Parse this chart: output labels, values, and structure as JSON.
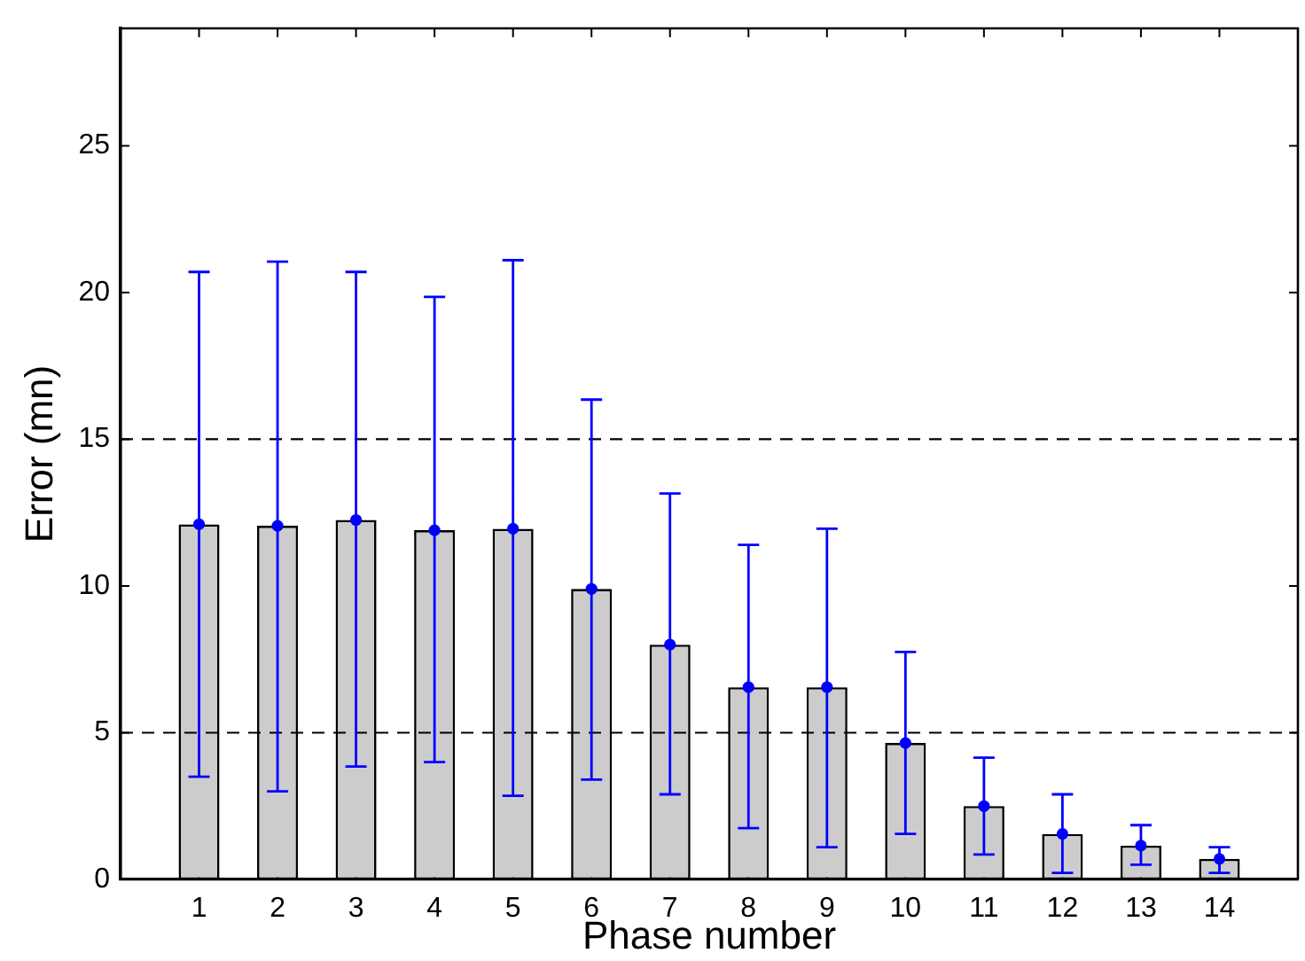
{
  "chart_data": {
    "type": "bar",
    "xlabel": "Phase number",
    "ylabel": "Error (mn)",
    "x": [
      1,
      2,
      3,
      4,
      5,
      6,
      7,
      8,
      9,
      10,
      11,
      12,
      13,
      14
    ],
    "xlim": [
      0,
      15
    ],
    "xticks": [
      1,
      2,
      3,
      4,
      5,
      6,
      7,
      8,
      9,
      10,
      11,
      12,
      13,
      14
    ],
    "ylim": [
      0,
      29
    ],
    "yticks": [
      0,
      5,
      10,
      15,
      20,
      25
    ],
    "series": [
      {
        "color": "#cccccc",
        "values": [
          12.1,
          12.05,
          12.25,
          11.9,
          11.95,
          9.9,
          8.0,
          6.55,
          6.55,
          4.65,
          2.5,
          1.55,
          1.15,
          0.7
        ]
      },
      {
        "type": "scatter",
        "color": "#0000ff",
        "values": [
          12.1,
          12.05,
          12.25,
          11.9,
          11.95,
          9.9,
          8.0,
          6.55,
          6.55,
          4.65,
          2.5,
          1.55,
          1.15,
          0.7
        ],
        "errors": [
          [
            3.5,
            20.7
          ],
          [
            3.0,
            21.05
          ],
          [
            3.85,
            20.7
          ],
          [
            4.0,
            19.85
          ],
          [
            2.85,
            21.1
          ],
          [
            3.4,
            16.35
          ],
          [
            2.9,
            13.15
          ],
          [
            1.75,
            11.4
          ],
          [
            1.1,
            11.95
          ],
          [
            1.55,
            7.75
          ],
          [
            0.85,
            4.15
          ],
          [
            0.22,
            2.9
          ],
          [
            0.5,
            1.85
          ],
          [
            0.22,
            1.1
          ]
        ]
      }
    ],
    "marker": "circle",
    "ref_lines": [
      {
        "axis": "y",
        "value": 5,
        "color": "#000000",
        "line_style": "dashed"
      },
      {
        "axis": "y",
        "value": 15,
        "color": "#000000",
        "line_style": "dashed"
      }
    ],
    "grid": false,
    "legend": false
  }
}
